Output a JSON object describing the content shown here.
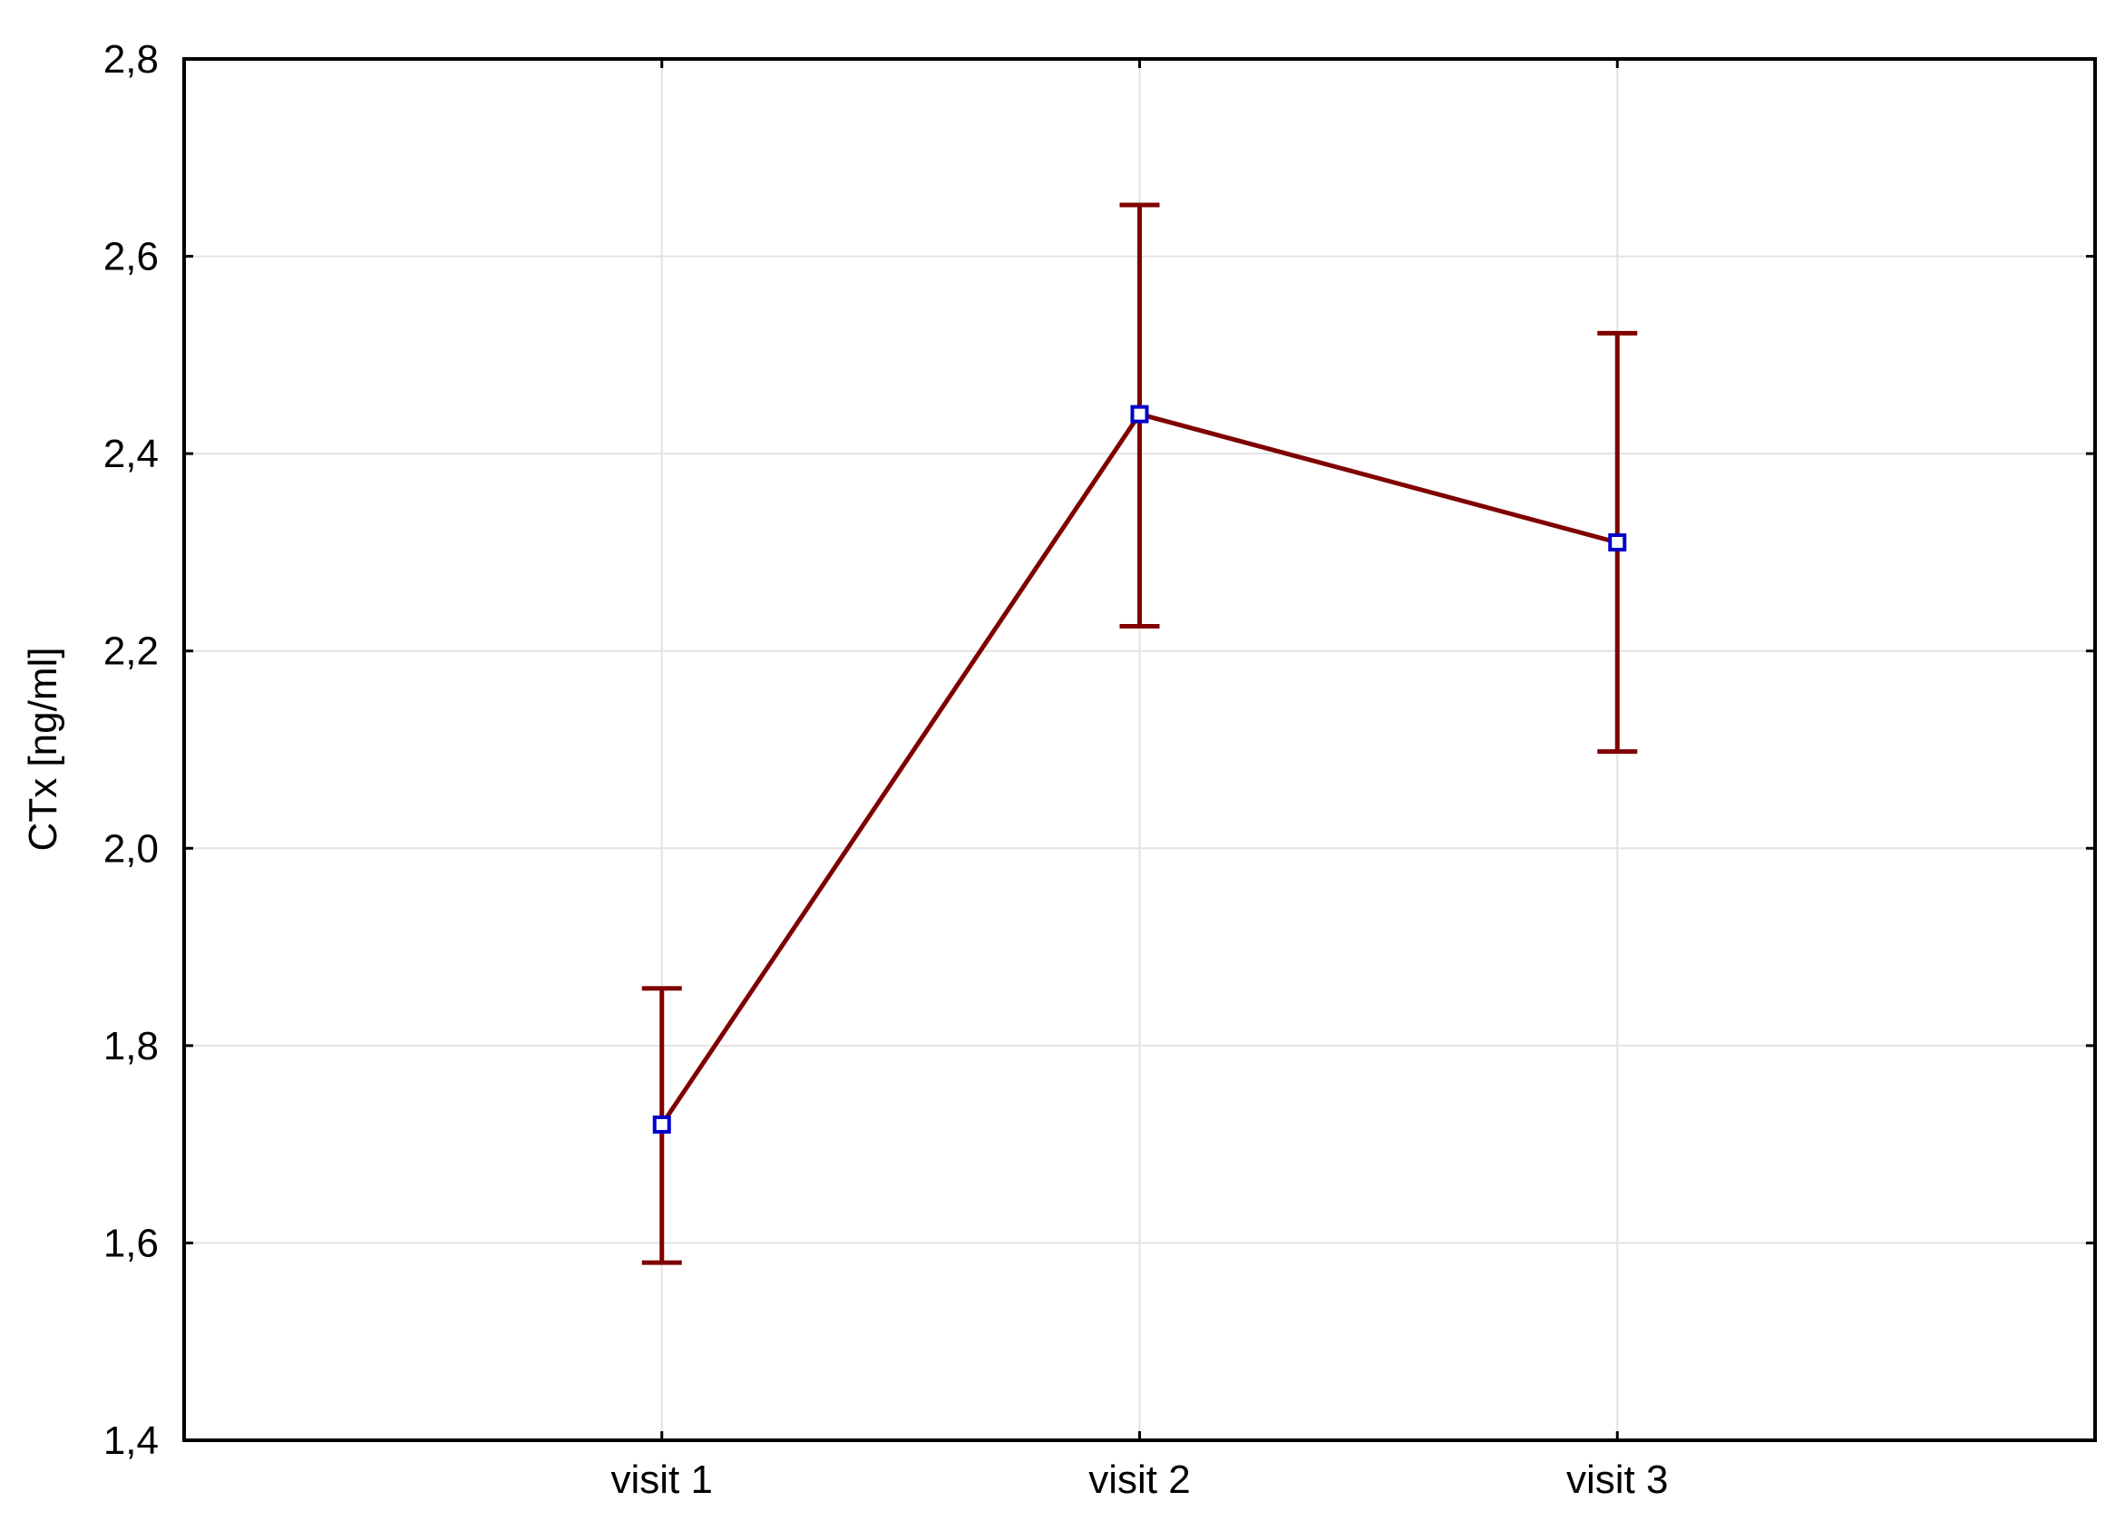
{
  "chart_data": {
    "type": "line",
    "categories": [
      "visit 1",
      "visit 2",
      "visit 3"
    ],
    "series": [
      {
        "values": [
          1.72,
          2.44,
          2.31
        ],
        "error_low": [
          1.58,
          2.225,
          2.098
        ],
        "error_high": [
          1.858,
          2.652,
          2.522
        ]
      }
    ],
    "ylabel": "CTx [ng/ml]",
    "xlabel": "",
    "ylim": [
      1.4,
      2.8
    ],
    "yticks": [
      "1,4",
      "1,6",
      "1,8",
      "2,0",
      "2,2",
      "2,4",
      "2,6",
      "2,8"
    ],
    "grid": true,
    "colors": {
      "line": "#800000",
      "error_bar": "#800000",
      "marker": "#0000cc"
    }
  }
}
